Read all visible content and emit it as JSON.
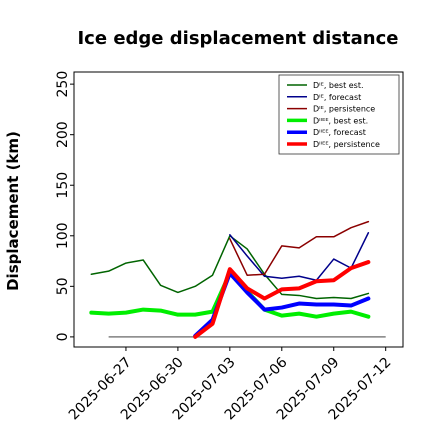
{
  "chart_data": {
    "type": "line",
    "title": "Ice edge displacement distance",
    "ylabel": "Displacement (km)",
    "xlabel": "",
    "x_dates": [
      "2025-06-25",
      "2025-06-26",
      "2025-06-27",
      "2025-06-28",
      "2025-06-29",
      "2025-06-30",
      "2025-07-01",
      "2025-07-02",
      "2025-07-03",
      "2025-07-04",
      "2025-07-05",
      "2025-07-06",
      "2025-07-07",
      "2025-07-08",
      "2025-07-09",
      "2025-07-10",
      "2025-07-11",
      "2025-07-12"
    ],
    "xlim": [
      "2025-06-24",
      "2025-07-13"
    ],
    "ylim": [
      -10,
      262
    ],
    "yticks": [
      0,
      50,
      100,
      150,
      200,
      250
    ],
    "xticks": [
      {
        "date": "2025-06-27",
        "label": "2025-06-27",
        "color": "#000000"
      },
      {
        "date": "2025-06-30",
        "label": "2025-06-30",
        "color": "#000000"
      },
      {
        "date": "2025-07-03",
        "label": "2025-07-03",
        "color": "#228B22"
      },
      {
        "date": "2025-07-06",
        "label": "2025-07-06",
        "color": "#000000"
      },
      {
        "date": "2025-07-09",
        "label": "2025-07-09",
        "color": "#000000"
      },
      {
        "date": "2025-07-12",
        "label": "2025-07-12",
        "color": "#000000"
      }
    ],
    "grid": false,
    "legend_position": "top-right",
    "zero_line_color": "#808080",
    "series": [
      {
        "name": "Dᴵᴱ, best est.",
        "color": "#006400",
        "width": 1.5,
        "values": [
          62,
          65,
          73,
          76,
          51,
          44,
          50,
          61,
          100,
          87,
          62,
          42,
          41,
          38,
          39,
          38,
          43,
          null
        ]
      },
      {
        "name": "Dᴵᴱ, forecast",
        "color": "#00008B",
        "width": 1.5,
        "values": [
          null,
          null,
          null,
          null,
          null,
          null,
          null,
          null,
          101,
          80,
          60,
          58,
          60,
          56,
          77,
          68,
          103,
          null
        ]
      },
      {
        "name": "Dᴵᴱ, persistence",
        "color": "#8B0000",
        "width": 1.5,
        "values": [
          null,
          null,
          null,
          null,
          null,
          null,
          null,
          null,
          97,
          61,
          62,
          90,
          88,
          99,
          99,
          108,
          114,
          null
        ]
      },
      {
        "name": "Dᴵᴵᴱᴱ, best est.",
        "color": "#00EE00",
        "width": 4,
        "values": [
          24,
          23,
          24,
          27,
          26,
          22,
          22,
          25,
          63,
          45,
          27,
          21,
          23,
          20,
          23,
          25,
          20,
          null
        ]
      },
      {
        "name": "Dᴵᴵᴱᴱ, forecast",
        "color": "#0000FF",
        "width": 4,
        "values": [
          null,
          null,
          null,
          null,
          null,
          null,
          1,
          17,
          63,
          44,
          27,
          29,
          33,
          32,
          32,
          31,
          38,
          null
        ]
      },
      {
        "name": "Dᴵᴵᴱᴱ, persistence",
        "color": "#FF0000",
        "width": 4,
        "values": [
          null,
          null,
          null,
          null,
          null,
          null,
          0,
          13,
          67,
          48,
          38,
          47,
          48,
          55,
          56,
          68,
          74,
          null
        ]
      }
    ]
  }
}
